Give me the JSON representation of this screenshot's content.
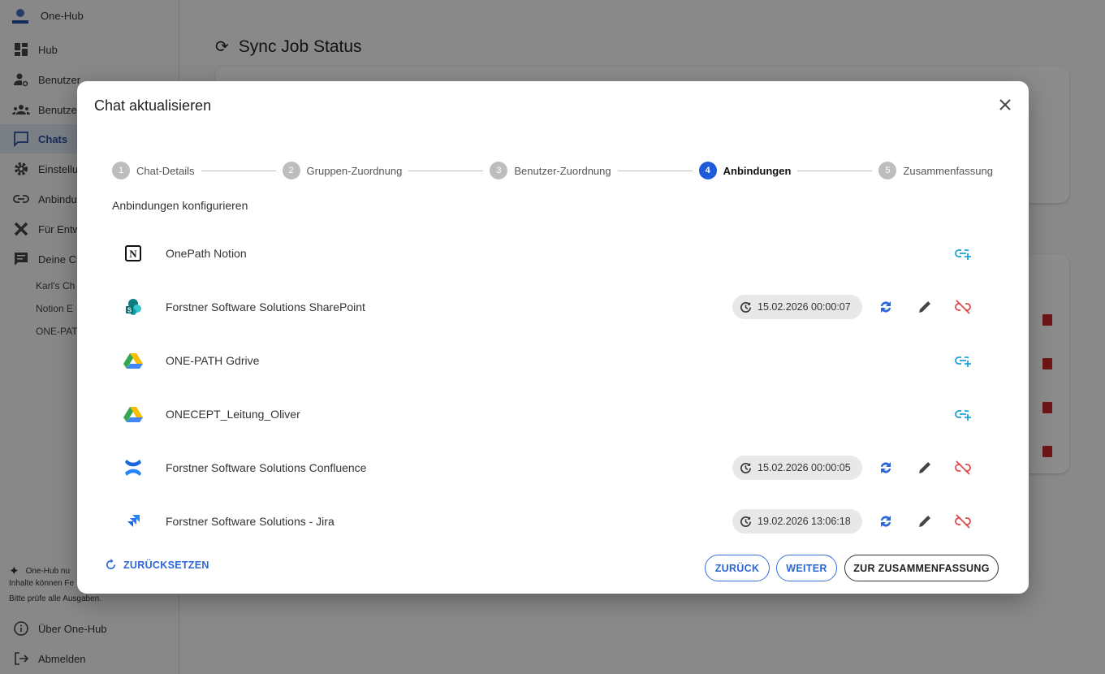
{
  "app": {
    "title": "One-Hub"
  },
  "sidebar": {
    "items": [
      {
        "label": "Hub",
        "icon": "dashboard-icon"
      },
      {
        "label": "Benutzer",
        "icon": "user-settings-icon"
      },
      {
        "label": "Benutzer",
        "icon": "groups-icon"
      },
      {
        "label": "Chats",
        "icon": "chat-icon",
        "active": true
      },
      {
        "label": "Einstellu",
        "icon": "gear-icon"
      },
      {
        "label": "Anbindu",
        "icon": "link-icon"
      },
      {
        "label": "Für Entw",
        "icon": "tools-icon"
      },
      {
        "label": "Deine Ch",
        "icon": "message-icon"
      }
    ],
    "chats": [
      "Karl's Ch",
      "Notion E",
      "ONE-PAT"
    ],
    "notice": [
      "One-Hub nu",
      "Inhalte können Fe",
      "Bitte prüfe alle Ausgaben."
    ],
    "about": "Über One-Hub",
    "logout": "Abmelden"
  },
  "main": {
    "title": "Sync Job Status"
  },
  "dialog": {
    "title": "Chat aktualisieren",
    "steps": [
      {
        "num": "1",
        "label": "Chat-Details"
      },
      {
        "num": "2",
        "label": "Gruppen-Zuordnung"
      },
      {
        "num": "3",
        "label": "Benutzer-Zuordnung"
      },
      {
        "num": "4",
        "label": "Anbindungen",
        "active": true
      },
      {
        "num": "5",
        "label": "Zusammenfassung"
      }
    ],
    "subtitle": "Anbindungen konfigurieren",
    "connections": [
      {
        "name": "OnePath Notion",
        "type": "notion",
        "connected": false
      },
      {
        "name": "Forstner Software Solutions SharePoint",
        "type": "sharepoint",
        "connected": true,
        "last_sync": "15.02.2026 00:00:07"
      },
      {
        "name": "ONE-PATH Gdrive",
        "type": "gdrive",
        "connected": false
      },
      {
        "name": "ONECEPT_Leitung_Oliver",
        "type": "gdrive",
        "connected": false
      },
      {
        "name": "Forstner Software Solutions Confluence",
        "type": "confluence",
        "connected": true,
        "last_sync": "15.02.2026 00:00:05"
      },
      {
        "name": "Forstner Software Solutions - Jira",
        "type": "jira",
        "connected": true,
        "last_sync": "19.02.2026 13:06:18"
      }
    ],
    "reset": "ZURÜCKSETZEN",
    "back": "ZURÜCK",
    "next": "WEITER",
    "summary": "ZUR ZUSAMMENFASSUNG"
  },
  "colors": {
    "accent": "#1e5bd8",
    "link": "#1aa3d9",
    "unlink": "#e04848",
    "danger": "#c62828"
  }
}
